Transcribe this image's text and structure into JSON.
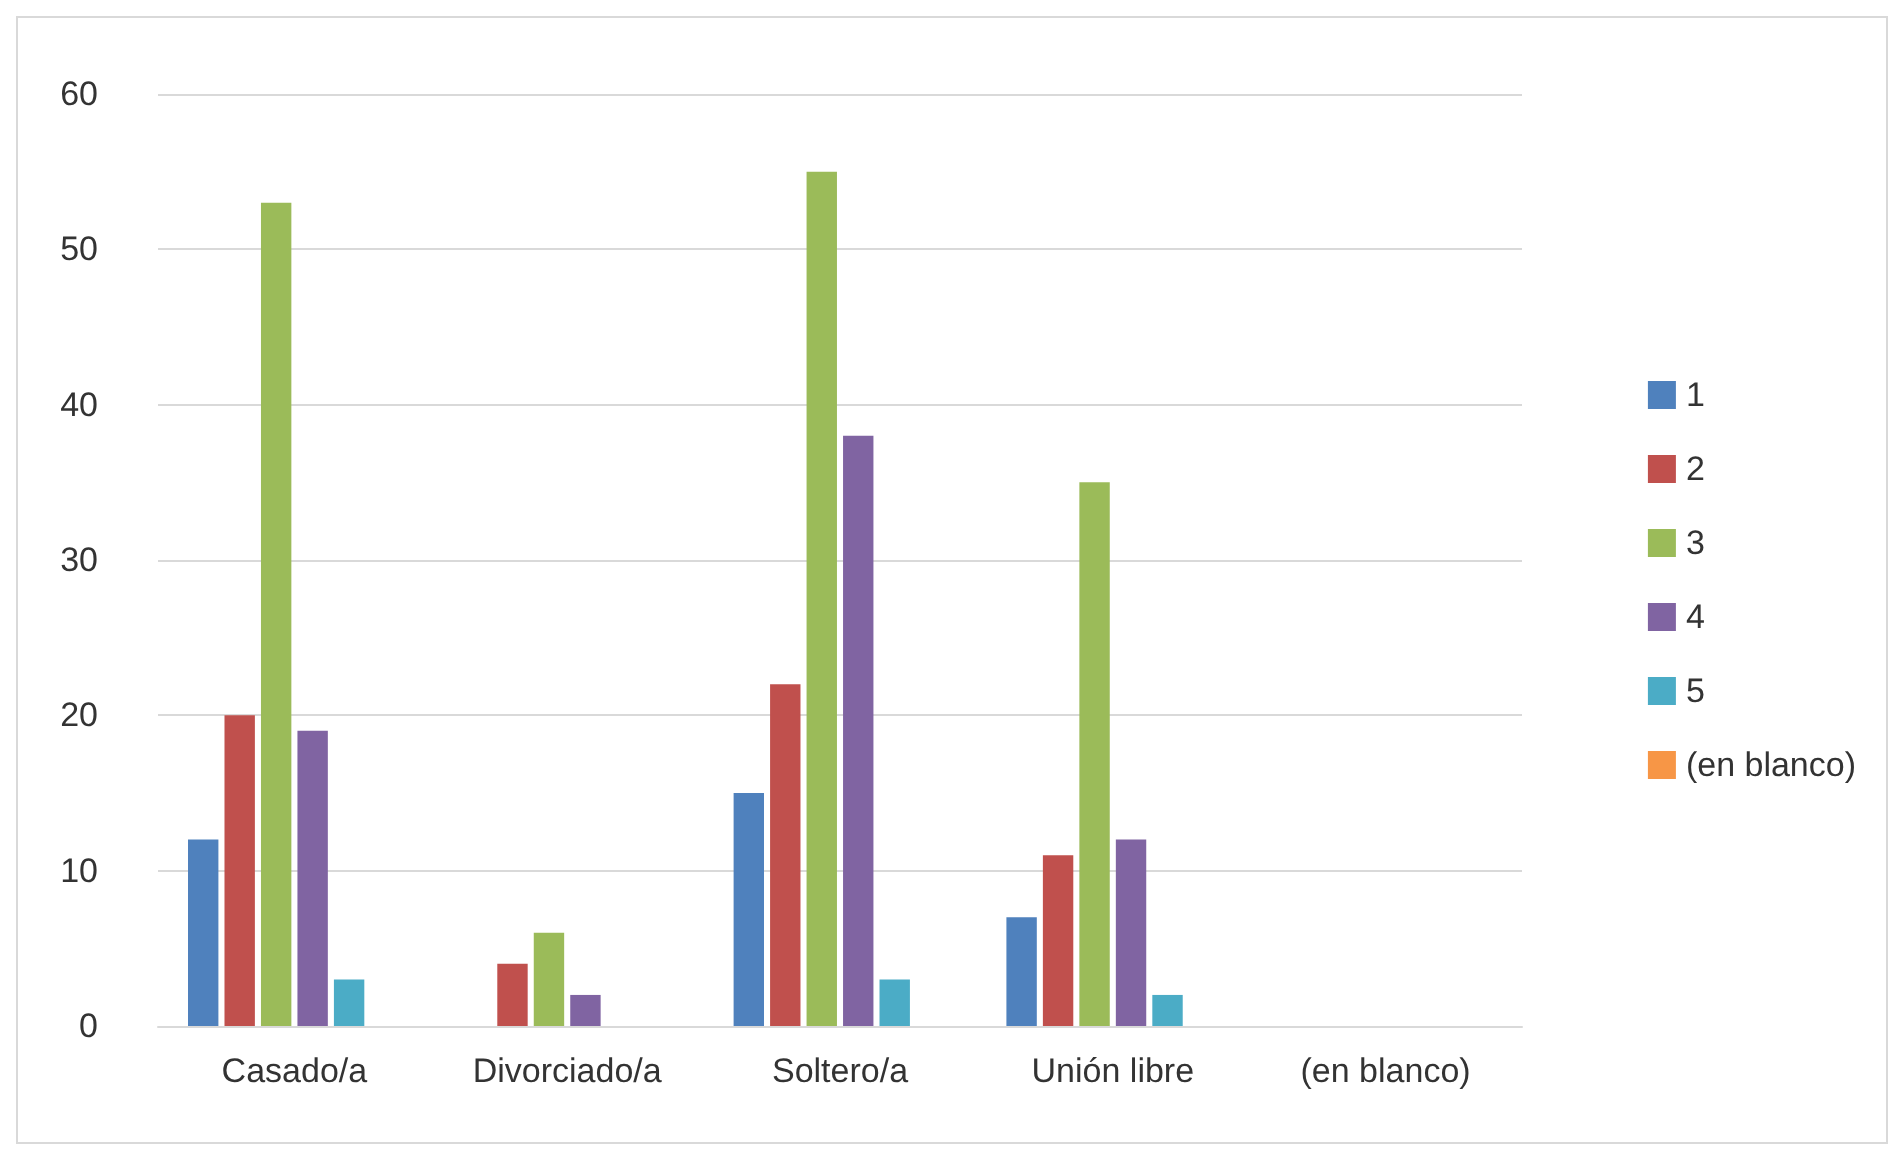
{
  "chart_data": {
    "type": "bar",
    "categories": [
      "Casado/a",
      "Divorciado/a",
      "Soltero/a",
      "Unión libre",
      "(en blanco)"
    ],
    "series": [
      {
        "name": "1",
        "color": "#4f81bd",
        "values": [
          12,
          null,
          15,
          7,
          null
        ]
      },
      {
        "name": "2",
        "color": "#c0504d",
        "values": [
          20,
          4,
          22,
          11,
          null
        ]
      },
      {
        "name": "3",
        "color": "#9bbb59",
        "values": [
          53,
          6,
          55,
          35,
          null
        ]
      },
      {
        "name": "4",
        "color": "#8064a2",
        "values": [
          19,
          2,
          38,
          12,
          null
        ]
      },
      {
        "name": "5",
        "color": "#4bacc6",
        "values": [
          3,
          null,
          3,
          2,
          null
        ]
      },
      {
        "name": "(en blanco)",
        "color": "#f79646",
        "values": [
          null,
          null,
          null,
          null,
          null
        ]
      }
    ],
    "ylim": [
      0,
      60
    ],
    "yticks": [
      0,
      10,
      20,
      30,
      40,
      50,
      60
    ],
    "grid": "y",
    "legend": "right"
  }
}
